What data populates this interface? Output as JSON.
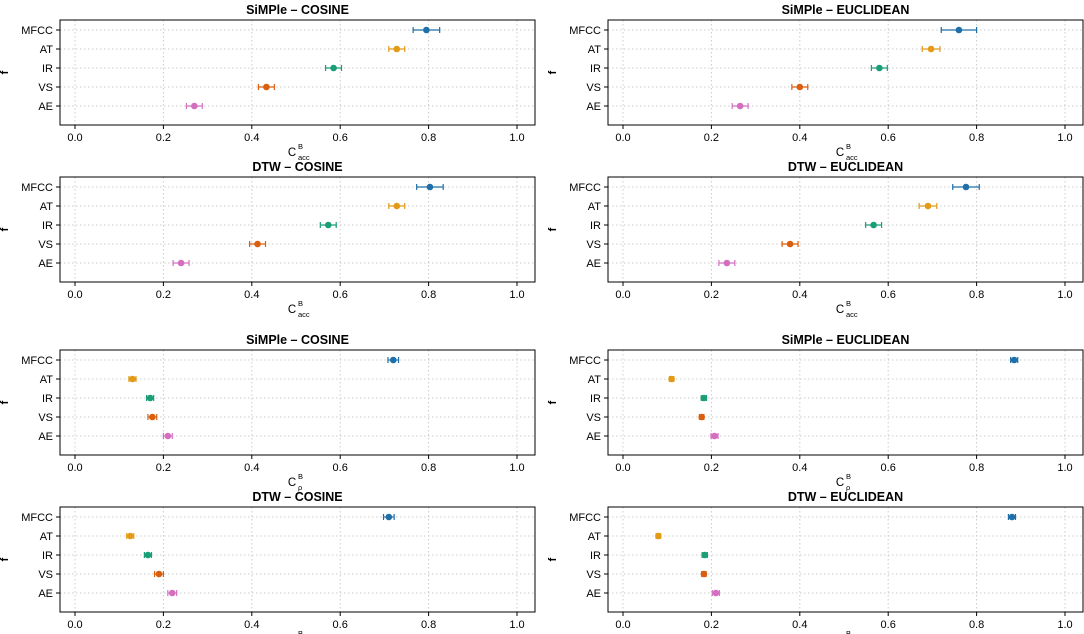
{
  "figure": {
    "y_axis_label": "f"
  },
  "colors": {
    "MFCC": "#1f6fa8",
    "AT": "#e39a17",
    "IR": "#1a9e77",
    "VS": "#d95f0e",
    "AE": "#d46fc0",
    "grid": "#cccccc",
    "axis": "#000000"
  },
  "chart_data": [
    {
      "type": "dot-errorbar",
      "title": "SiMPle – COSINE",
      "xlabel": {
        "base": "C",
        "sup": "B",
        "sub": "acc"
      },
      "ylabel": "f",
      "xlim": [
        0,
        1
      ],
      "xticks": [
        "0.0",
        "0.2",
        "0.4",
        "0.6",
        "0.8",
        "1.0"
      ],
      "grid": true,
      "categories": [
        "MFCC",
        "AT",
        "IR",
        "VS",
        "AE"
      ],
      "values": [
        0.795,
        0.728,
        0.585,
        0.433,
        0.27
      ],
      "errors": [
        0.03,
        0.018,
        0.018,
        0.018,
        0.018
      ]
    },
    {
      "type": "dot-errorbar",
      "title": "SiMPle – EUCLIDEAN",
      "xlabel": {
        "base": "C",
        "sup": "B",
        "sub": "acc"
      },
      "ylabel": "f",
      "xlim": [
        0,
        1
      ],
      "xticks": [
        "0.0",
        "0.2",
        "0.4",
        "0.6",
        "0.8",
        "1.0"
      ],
      "grid": true,
      "categories": [
        "MFCC",
        "AT",
        "IR",
        "VS",
        "AE"
      ],
      "values": [
        0.76,
        0.697,
        0.58,
        0.4,
        0.265
      ],
      "errors": [
        0.04,
        0.02,
        0.018,
        0.018,
        0.018
      ]
    },
    {
      "type": "dot-errorbar",
      "title": "DTW – COSINE",
      "xlabel": {
        "base": "C",
        "sup": "B",
        "sub": "acc"
      },
      "ylabel": "f",
      "xlim": [
        0,
        1
      ],
      "xticks": [
        "0.0",
        "0.2",
        "0.4",
        "0.6",
        "0.8",
        "1.0"
      ],
      "grid": true,
      "categories": [
        "MFCC",
        "AT",
        "IR",
        "VS",
        "AE"
      ],
      "values": [
        0.803,
        0.728,
        0.573,
        0.413,
        0.24
      ],
      "errors": [
        0.03,
        0.018,
        0.018,
        0.018,
        0.018
      ]
    },
    {
      "type": "dot-errorbar",
      "title": "DTW – EUCLIDEAN",
      "xlabel": {
        "base": "C",
        "sup": "B",
        "sub": "acc"
      },
      "ylabel": "f",
      "xlim": [
        0,
        1
      ],
      "xticks": [
        "0.0",
        "0.2",
        "0.4",
        "0.6",
        "0.8",
        "1.0"
      ],
      "grid": true,
      "categories": [
        "MFCC",
        "AT",
        "IR",
        "VS",
        "AE"
      ],
      "values": [
        0.776,
        0.69,
        0.567,
        0.378,
        0.235
      ],
      "errors": [
        0.03,
        0.02,
        0.018,
        0.018,
        0.018
      ]
    },
    {
      "type": "dot-errorbar",
      "title": "SiMPle – COSINE",
      "xlabel": {
        "base": "C",
        "sup": "B",
        "sub": "ρ"
      },
      "ylabel": "f",
      "xlim": [
        0,
        1
      ],
      "xticks": [
        "0.0",
        "0.2",
        "0.4",
        "0.6",
        "0.8",
        "1.0"
      ],
      "grid": true,
      "categories": [
        "MFCC",
        "AT",
        "IR",
        "VS",
        "AE"
      ],
      "values": [
        0.72,
        0.13,
        0.17,
        0.175,
        0.21
      ],
      "errors": [
        0.012,
        0.008,
        0.008,
        0.01,
        0.01
      ]
    },
    {
      "type": "dot-errorbar",
      "title": "SiMPle – EUCLIDEAN",
      "xlabel": {
        "base": "C",
        "sup": "B",
        "sub": "ρ"
      },
      "ylabel": "f",
      "xlim": [
        0,
        1
      ],
      "xticks": [
        "0.0",
        "0.2",
        "0.4",
        "0.6",
        "0.8",
        "1.0"
      ],
      "grid": true,
      "categories": [
        "MFCC",
        "AT",
        "IR",
        "VS",
        "AE"
      ],
      "values": [
        0.885,
        0.11,
        0.183,
        0.178,
        0.207
      ],
      "errors": [
        0.008,
        0.005,
        0.006,
        0.005,
        0.008
      ]
    },
    {
      "type": "dot-errorbar",
      "title": "DTW – COSINE",
      "xlabel": {
        "base": "C",
        "sup": "B",
        "sub": "ρ"
      },
      "ylabel": "f",
      "xlim": [
        0,
        1
      ],
      "xticks": [
        "0.0",
        "0.2",
        "0.4",
        "0.6",
        "0.8",
        "1.0"
      ],
      "grid": true,
      "categories": [
        "MFCC",
        "AT",
        "IR",
        "VS",
        "AE"
      ],
      "values": [
        0.71,
        0.125,
        0.165,
        0.19,
        0.22
      ],
      "errors": [
        0.012,
        0.008,
        0.008,
        0.01,
        0.01
      ]
    },
    {
      "type": "dot-errorbar",
      "title": "DTW – EUCLIDEAN",
      "xlabel": {
        "base": "C",
        "sup": "B",
        "sub": "ρ"
      },
      "ylabel": "f",
      "xlim": [
        0,
        1
      ],
      "xticks": [
        "0.0",
        "0.2",
        "0.4",
        "0.6",
        "0.8",
        "1.0"
      ],
      "grid": true,
      "categories": [
        "MFCC",
        "AT",
        "IR",
        "VS",
        "AE"
      ],
      "values": [
        0.88,
        0.08,
        0.185,
        0.183,
        0.21
      ],
      "errors": [
        0.008,
        0.005,
        0.006,
        0.005,
        0.008
      ]
    }
  ]
}
